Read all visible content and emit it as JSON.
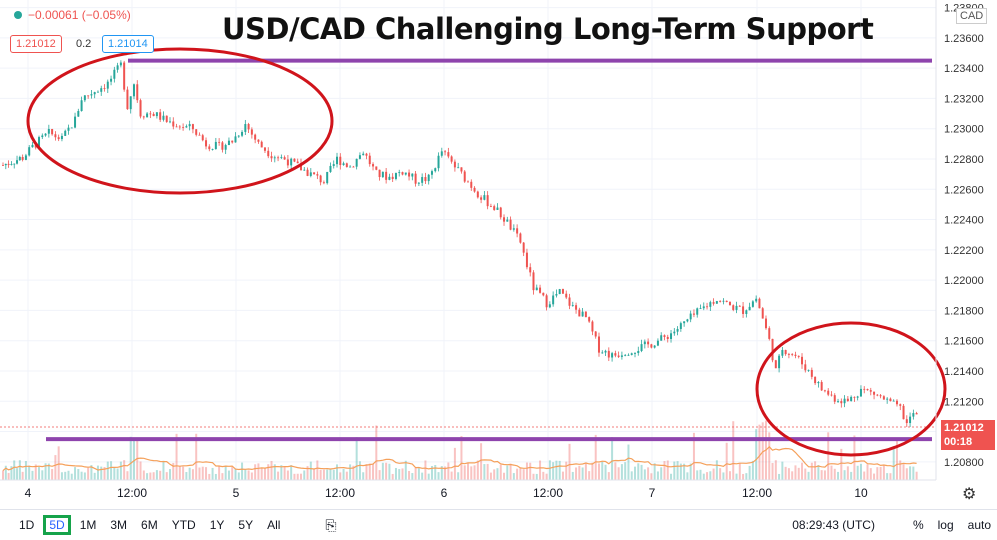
{
  "title": "USD/CAD Challenging Long-Term Support",
  "quote": {
    "change": "−0.00061 (−0.05%)",
    "bid": "1.21012",
    "spread": "0.2",
    "ask": "1.21014"
  },
  "axis": {
    "currency": "CAD",
    "last_price": "1.21012",
    "countdown": "00:18"
  },
  "timeframes": [
    "1D",
    "5D",
    "1M",
    "3M",
    "6M",
    "YTD",
    "1Y",
    "5Y",
    "All"
  ],
  "active_timeframe": "5D",
  "clock": "08:29:43 (UTC)",
  "scale_options": {
    "percent": "%",
    "log": "log",
    "auto": "auto"
  },
  "colors": {
    "up": "#26a69a",
    "down": "#ef5350",
    "support_line": "#8e44ad",
    "annotation": "#d0141b",
    "volume_ma": "#f5a05a"
  },
  "icons": [
    "settings-gear-icon",
    "compare-icon"
  ],
  "chart_data": {
    "type": "line",
    "title": "USD/CAD Challenging Long-Term Support",
    "x_ticks": [
      "4",
      "12:00",
      "5",
      "12:00",
      "6",
      "12:00",
      "7",
      "12:00",
      "10"
    ],
    "y_ticks": [
      1.238,
      1.236,
      1.234,
      1.232,
      1.23,
      1.228,
      1.226,
      1.224,
      1.222,
      1.22,
      1.218,
      1.216,
      1.214,
      1.212,
      1.21,
      1.208
    ],
    "ylim": [
      1.2068,
      1.2385
    ],
    "series": [
      {
        "values": [
          [
            0,
            1.2276
          ],
          [
            3,
            1.2281
          ],
          [
            5,
            1.229
          ],
          [
            7,
            1.2297
          ],
          [
            9,
            1.2293
          ],
          [
            11,
            1.2306
          ],
          [
            12,
            1.232
          ],
          [
            14,
            1.2325
          ],
          [
            16,
            1.233
          ],
          [
            18,
            1.2342
          ],
          [
            19,
            1.2315
          ],
          [
            20,
            1.233
          ],
          [
            21,
            1.231
          ],
          [
            23,
            1.231
          ],
          [
            25,
            1.2305
          ],
          [
            27,
            1.2302
          ],
          [
            29,
            1.23
          ],
          [
            31,
            1.229
          ],
          [
            33,
            1.2288
          ],
          [
            35,
            1.2292
          ],
          [
            37,
            1.2303
          ],
          [
            39,
            1.229
          ],
          [
            41,
            1.2283
          ],
          [
            43,
            1.228
          ],
          [
            45,
            1.2275
          ],
          [
            47,
            1.227
          ],
          [
            49,
            1.2265
          ],
          [
            51,
            1.228
          ],
          [
            53,
            1.2275
          ],
          [
            55,
            1.2285
          ],
          [
            57,
            1.227
          ],
          [
            59,
            1.2268
          ],
          [
            61,
            1.2272
          ],
          [
            63,
            1.2266
          ],
          [
            65,
            1.2267
          ],
          [
            67,
            1.2285
          ],
          [
            69,
            1.2275
          ],
          [
            71,
            1.2265
          ],
          [
            73,
            1.2255
          ],
          [
            75,
            1.2248
          ],
          [
            77,
            1.2238
          ],
          [
            79,
            1.2225
          ],
          [
            81,
            1.2195
          ],
          [
            83,
            1.2185
          ],
          [
            85,
            1.2192
          ],
          [
            87,
            1.2182
          ],
          [
            89,
            1.2175
          ],
          [
            91,
            1.2155
          ],
          [
            93,
            1.215
          ],
          [
            95,
            1.2153
          ],
          [
            97,
            1.2155
          ],
          [
            99,
            1.2158
          ],
          [
            101,
            1.2162
          ],
          [
            103,
            1.2168
          ],
          [
            105,
            1.2175
          ],
          [
            107,
            1.2182
          ],
          [
            109,
            1.2188
          ],
          [
            111,
            1.2183
          ],
          [
            113,
            1.218
          ],
          [
            115,
            1.2188
          ],
          [
            116,
            1.2175
          ],
          [
            117,
            1.216
          ],
          [
            118,
            1.214
          ],
          [
            119,
            1.2155
          ],
          [
            121,
            1.215
          ],
          [
            123,
            1.214
          ],
          [
            125,
            1.2128
          ],
          [
            127,
            1.2122
          ],
          [
            129,
            1.212
          ],
          [
            131,
            1.2128
          ],
          [
            133,
            1.2125
          ],
          [
            135,
            1.212
          ],
          [
            137,
            1.2115
          ],
          [
            138,
            1.2105
          ],
          [
            139,
            1.2112
          ],
          [
            140,
            1.2108
          ]
        ]
      }
    ],
    "support_levels": [
      1.2345,
      1.2095
    ],
    "grid": true
  }
}
